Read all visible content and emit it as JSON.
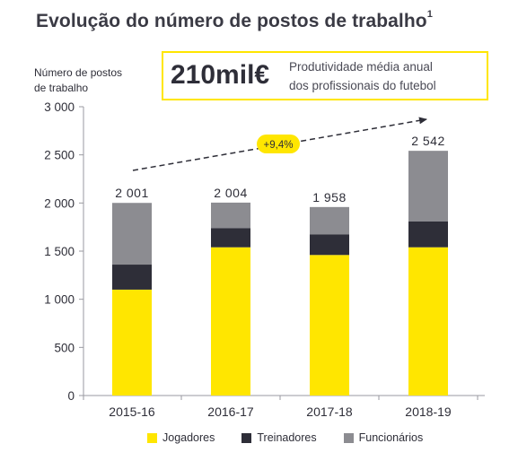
{
  "title": "Evolução do número de postos de trabalho",
  "title_footnote": "1",
  "kpi": {
    "value": "210mil€",
    "description_line1": "Produtividade média anual",
    "description_line2": "dos profissionais do futebol"
  },
  "colors": {
    "jogadores": "#ffe600",
    "treinadores": "#2e2e38",
    "funcionarios": "#8c8c91",
    "accent": "#ffe600"
  },
  "chart_data": {
    "type": "bar",
    "stacked": true,
    "ylabel_line1": "Número de postos",
    "ylabel_line2": "de trabalho",
    "ylim": [
      0,
      3000
    ],
    "yticks": [
      0,
      500,
      1000,
      1500,
      2000,
      2500,
      3000
    ],
    "ytick_labels": [
      "0",
      "500",
      "1 000",
      "1 500",
      "2 000",
      "2 500",
      "3 000"
    ],
    "categories": [
      "2015-16",
      "2016-17",
      "2017-18",
      "2018-19"
    ],
    "series": [
      {
        "name": "Jogadores",
        "color": "#ffe600",
        "values": [
          1100,
          1540,
          1460,
          1540
        ]
      },
      {
        "name": "Treinadores",
        "color": "#2e2e38",
        "values": [
          260,
          200,
          215,
          270
        ]
      },
      {
        "name": "Funcionários",
        "color": "#8c8c91",
        "values": [
          641,
          264,
          283,
          732
        ]
      }
    ],
    "totals": [
      2001,
      2004,
      1958,
      2542
    ],
    "total_labels": [
      "2 001",
      "2 004",
      "1 958",
      "2 542"
    ],
    "trend_annotation": "+9,4%",
    "grid": false,
    "legend_position": "bottom"
  }
}
